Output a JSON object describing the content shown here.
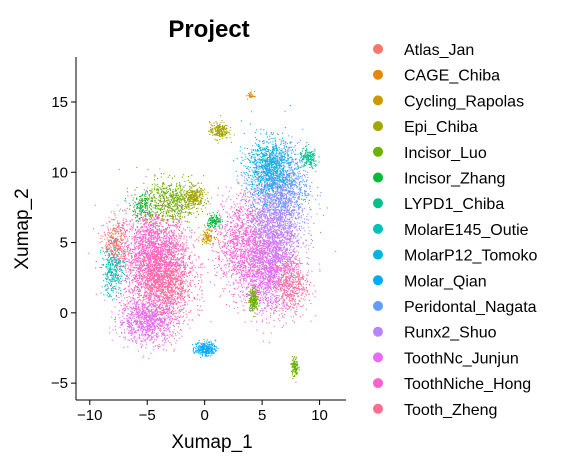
{
  "chart_data": {
    "type": "scatter",
    "title": "Project",
    "xlabel": "Xumap_1",
    "ylabel": "Xumap_2",
    "xlim": [
      -11.2,
      12.3
    ],
    "ylim": [
      -6.2,
      18.2
    ],
    "x_ticks": [
      -10,
      -5,
      0,
      5,
      10
    ],
    "x_tick_labels": [
      "−10",
      "−5",
      "0",
      "5",
      "10"
    ],
    "y_ticks": [
      -5,
      0,
      5,
      10,
      15
    ],
    "y_tick_labels": [
      "−5",
      "0",
      "5",
      "10",
      "15"
    ],
    "grid": false,
    "legend_position": "right",
    "series": [
      {
        "name": "Atlas_Jan",
        "color": "#F8766D"
      },
      {
        "name": "CAGE_Chiba",
        "color": "#E6870C"
      },
      {
        "name": "Cycling_Rapolas",
        "color": "#CC9A00"
      },
      {
        "name": "Epi_Chiba",
        "color": "#A3A500"
      },
      {
        "name": "Incisor_Luo",
        "color": "#6BB100"
      },
      {
        "name": "Incisor_Zhang",
        "color": "#00BA38"
      },
      {
        "name": "LYPD1_Chiba",
        "color": "#00C08B"
      },
      {
        "name": "MolarE145_Outie",
        "color": "#00C0B8"
      },
      {
        "name": "MolarP12_Tomoko",
        "color": "#00B4E0"
      },
      {
        "name": "Molar_Qian",
        "color": "#00A9FF"
      },
      {
        "name": "Peridontal_Nagata",
        "color": "#619CFF"
      },
      {
        "name": "Runx2_Shuo",
        "color": "#B983FF"
      },
      {
        "name": "ToothNc_Junjun",
        "color": "#E76BF3"
      },
      {
        "name": "ToothNiche_Hong",
        "color": "#FD61D1"
      },
      {
        "name": "Tooth_Zheng",
        "color": "#FF6C91"
      }
    ],
    "clusters": [
      {
        "series": 13,
        "cx": -4.5,
        "cy": 4.0,
        "sx": 3.0,
        "sy": 3.5,
        "n": 2400
      },
      {
        "series": 14,
        "cx": -3.5,
        "cy": 2.0,
        "sx": 2.5,
        "sy": 3.0,
        "n": 1200
      },
      {
        "series": 12,
        "cx": -5.0,
        "cy": -0.5,
        "sx": 2.6,
        "sy": 1.6,
        "n": 900
      },
      {
        "series": 0,
        "cx": -7.8,
        "cy": 5.0,
        "sx": 1.0,
        "sy": 1.6,
        "n": 300
      },
      {
        "series": 7,
        "cx": -8.0,
        "cy": 3.0,
        "sx": 1.0,
        "sy": 1.8,
        "n": 300
      },
      {
        "series": 4,
        "cx": -3.0,
        "cy": 8.0,
        "sx": 2.5,
        "sy": 1.5,
        "n": 600
      },
      {
        "series": 3,
        "cx": -1.0,
        "cy": 8.3,
        "sx": 0.9,
        "sy": 0.7,
        "n": 250
      },
      {
        "series": 5,
        "cx": -5.5,
        "cy": 7.5,
        "sx": 1.2,
        "sy": 1.0,
        "n": 150
      },
      {
        "series": 9,
        "cx": 0.0,
        "cy": -2.5,
        "sx": 0.9,
        "sy": 0.5,
        "n": 250
      },
      {
        "series": 10,
        "cx": 6.5,
        "cy": 9.0,
        "sx": 2.5,
        "sy": 3.0,
        "n": 1200
      },
      {
        "series": 11,
        "cx": 6.0,
        "cy": 6.0,
        "sx": 2.5,
        "sy": 3.5,
        "n": 1500
      },
      {
        "series": 12,
        "cx": 5.5,
        "cy": 3.0,
        "sx": 2.5,
        "sy": 3.0,
        "n": 1500
      },
      {
        "series": 8,
        "cx": 5.5,
        "cy": 10.5,
        "sx": 2.0,
        "sy": 2.0,
        "n": 800
      },
      {
        "series": 13,
        "cx": 3.0,
        "cy": 5.0,
        "sx": 2.0,
        "sy": 3.5,
        "n": 900
      },
      {
        "series": 14,
        "cx": 7.5,
        "cy": 2.0,
        "sx": 1.5,
        "sy": 2.0,
        "n": 400
      },
      {
        "series": 3,
        "cx": 1.2,
        "cy": 13.0,
        "sx": 0.8,
        "sy": 0.6,
        "n": 200
      },
      {
        "series": 4,
        "cx": 4.2,
        "cy": 1.0,
        "sx": 0.4,
        "sy": 0.8,
        "n": 200
      },
      {
        "series": 4,
        "cx": 7.8,
        "cy": -3.8,
        "sx": 0.3,
        "sy": 0.7,
        "n": 120
      },
      {
        "series": 5,
        "cx": 0.8,
        "cy": 6.5,
        "sx": 0.6,
        "sy": 0.5,
        "n": 120
      },
      {
        "series": 6,
        "cx": 9.0,
        "cy": 11.0,
        "sx": 0.8,
        "sy": 0.7,
        "n": 150
      },
      {
        "series": 2,
        "cx": 0.2,
        "cy": 5.5,
        "sx": 0.6,
        "sy": 0.5,
        "n": 100
      },
      {
        "series": 1,
        "cx": 4.0,
        "cy": 15.5,
        "sx": 0.3,
        "sy": 0.3,
        "n": 30
      }
    ]
  }
}
